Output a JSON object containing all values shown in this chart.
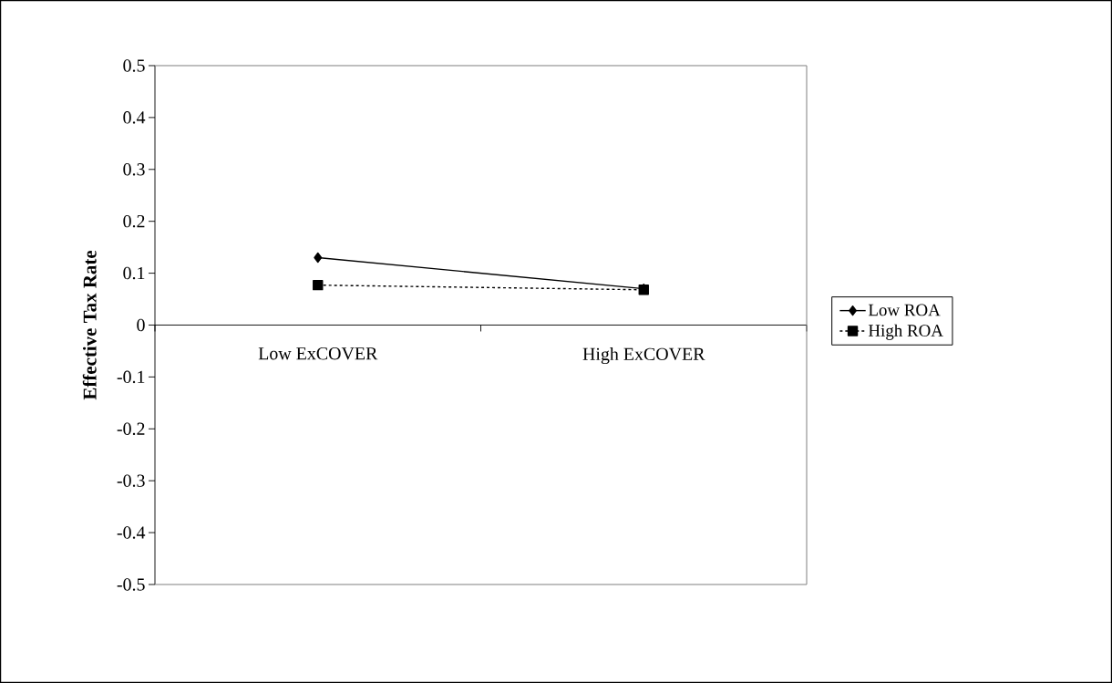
{
  "chart_data": {
    "type": "line",
    "ylabel": "Effective Tax Rate",
    "categories": [
      "Low ExCOVER",
      "High ExCOVER"
    ],
    "series": [
      {
        "name": "Low ROA",
        "color": "#000000",
        "values": [
          0.13,
          0.07
        ],
        "marker": "diamond",
        "line_style": "solid"
      },
      {
        "name": "High ROA",
        "color": "#000000",
        "values": [
          0.077,
          0.068
        ],
        "marker": "square",
        "line_style": "dashed"
      }
    ],
    "ylim": [
      -0.5,
      0.5
    ],
    "yticks": [
      -0.5,
      -0.4,
      -0.3,
      -0.2,
      -0.1,
      0,
      0.1,
      0.2,
      0.3,
      0.4,
      0.5
    ],
    "grid": false,
    "legend": "right"
  }
}
